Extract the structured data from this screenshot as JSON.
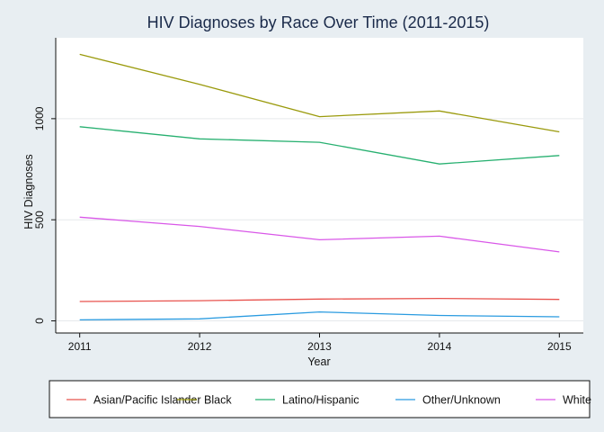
{
  "chart_data": {
    "type": "line",
    "title": "HIV Diagnoses by Race Over Time (2011-2015)",
    "xlabel": "Year",
    "ylabel": "HIV Diagnoses",
    "x": [
      2011,
      2012,
      2013,
      2014,
      2015
    ],
    "x_tick_labels": [
      "2011",
      "2012",
      "2013",
      "2014",
      "2015"
    ],
    "y_ticks": [
      0,
      500,
      1000
    ],
    "y_tick_labels": [
      "0",
      "500",
      "1000"
    ],
    "ylim": [
      -60,
      1400
    ],
    "xlim": [
      2010.8,
      2015.2
    ],
    "grid": "horizontal",
    "legend_position": "bottom",
    "series": [
      {
        "name": "Asian/Pacific Islander",
        "color": "#e8534e",
        "values": [
          96,
          100,
          108,
          111,
          106
        ]
      },
      {
        "name": "Black",
        "color": "#9a9a0c",
        "values": [
          1318,
          1170,
          1010,
          1038,
          935
        ]
      },
      {
        "name": "Latino/Hispanic",
        "color": "#27b070",
        "values": [
          960,
          900,
          883,
          776,
          818
        ]
      },
      {
        "name": "Other/Unknown",
        "color": "#2a9be0",
        "values": [
          5,
          10,
          44,
          27,
          20
        ]
      },
      {
        "name": "White",
        "color": "#d957e8",
        "values": [
          513,
          467,
          401,
          419,
          341
        ]
      }
    ]
  }
}
